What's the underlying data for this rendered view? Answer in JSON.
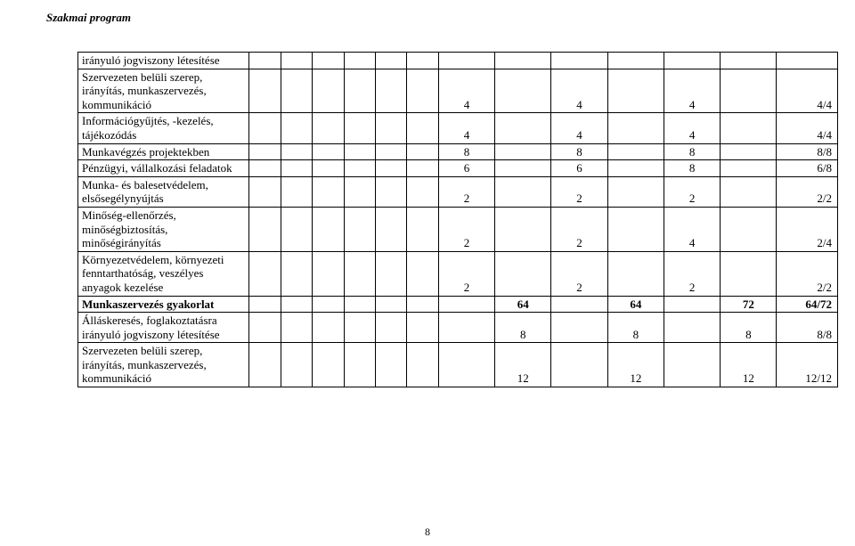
{
  "header": "Szakmai program",
  "pageNumber": "8",
  "rows": [
    {
      "label": "irányuló jogviszony létesítése",
      "bold": false,
      "values": [
        "",
        "",
        "",
        "",
        "",
        "",
        ""
      ]
    },
    {
      "label": "Szervezeten belüli szerep, irányítás, munkaszervezés, kommunikáció",
      "bold": false,
      "values": [
        "4",
        "",
        "4",
        "",
        "4",
        "",
        "4/4"
      ]
    },
    {
      "label": "Információgyűjtés, -kezelés, tájékozódás",
      "bold": false,
      "values": [
        "4",
        "",
        "4",
        "",
        "4",
        "",
        "4/4"
      ]
    },
    {
      "label": "Munkavégzés projektekben",
      "bold": false,
      "values": [
        "8",
        "",
        "8",
        "",
        "8",
        "",
        "8/8"
      ]
    },
    {
      "label": "Pénzügyi, vállalkozási feladatok",
      "bold": false,
      "values": [
        "6",
        "",
        "6",
        "",
        "8",
        "",
        "6/8"
      ]
    },
    {
      "label": "Munka- és balesetvédelem, elsősegélynyújtás",
      "bold": false,
      "values": [
        "2",
        "",
        "2",
        "",
        "2",
        "",
        "2/2"
      ]
    },
    {
      "label": "Minőség-ellenőrzés, minőségbiztosítás, minőségirányítás",
      "bold": false,
      "values": [
        "2",
        "",
        "2",
        "",
        "4",
        "",
        "2/4"
      ]
    },
    {
      "label": "Környezetvédelem, környezeti fenntarthatóság, veszélyes anyagok kezelése",
      "bold": false,
      "values": [
        "2",
        "",
        "2",
        "",
        "2",
        "",
        "2/2"
      ]
    },
    {
      "label": "Munkaszervezés gyakorlat",
      "bold": true,
      "values": [
        "",
        "64",
        "",
        "64",
        "",
        "72",
        "64/72"
      ]
    },
    {
      "label": "Álláskeresés, foglakoztatásra irányuló jogviszony létesítése",
      "bold": false,
      "values": [
        "",
        "8",
        "",
        "8",
        "",
        "8",
        "8/8"
      ]
    },
    {
      "label": "Szervezeten belüli szerep, irányítás, munkaszervezés, kommunikáció",
      "bold": false,
      "values": [
        "",
        "12",
        "",
        "12",
        "",
        "12",
        "12/12"
      ]
    }
  ],
  "style": {
    "bodyBg": "#ffffff",
    "textColor": "#000000",
    "fontBase": "Times New Roman",
    "fontSizePx": 13,
    "headerItalic": true,
    "headerBold": true,
    "columns": {
      "labelWidthPx": 152,
      "narrowWidthPx": 28,
      "numWidthPx": 50,
      "finalWidthPx": 54,
      "narrowCount": 6,
      "numCols": 6,
      "finalCols": 1
    },
    "border": "1px solid #000000"
  }
}
